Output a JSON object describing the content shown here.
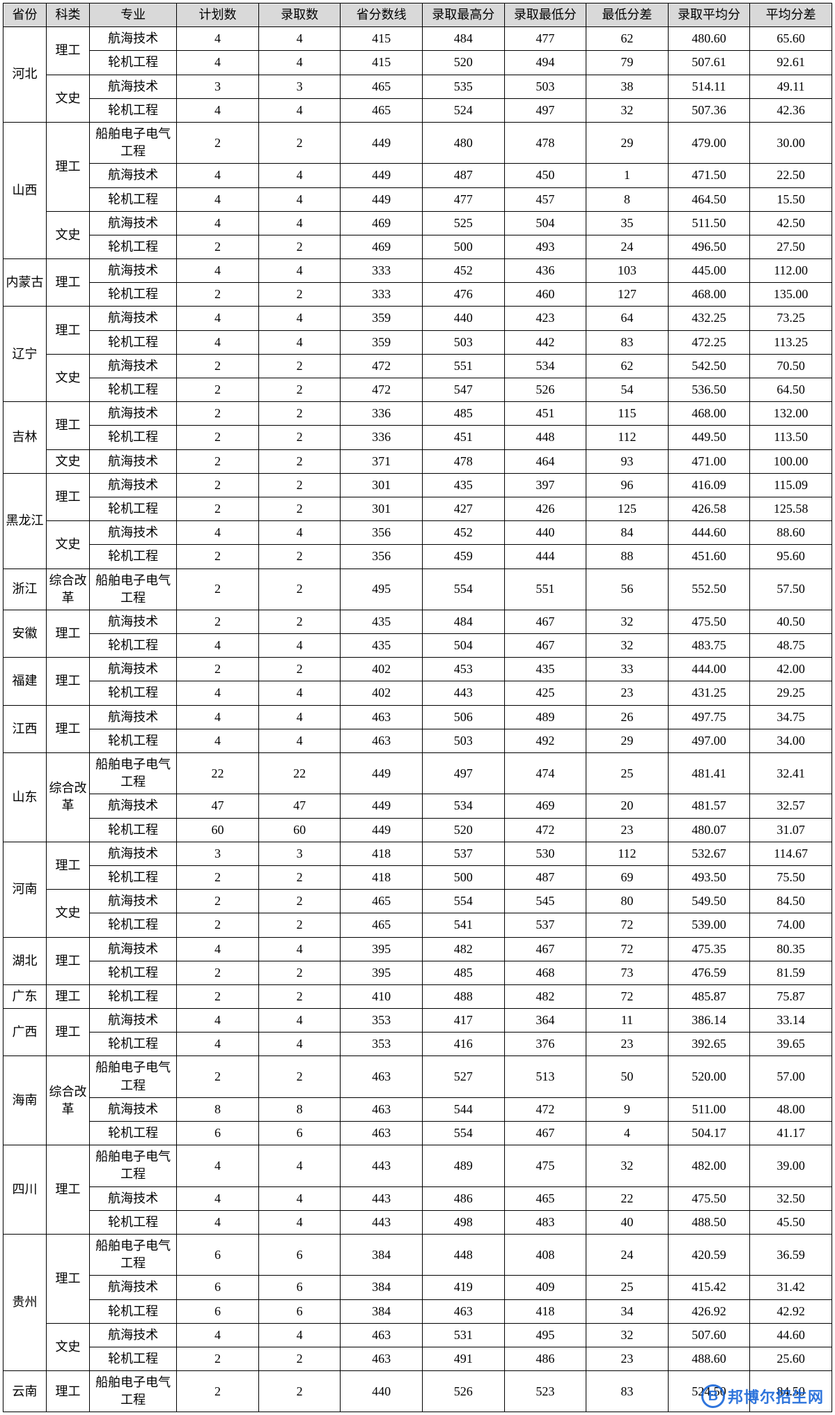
{
  "headers": [
    "省份",
    "科类",
    "专业",
    "计划数",
    "录取数",
    "省分数线",
    "录取最高分",
    "录取最低分",
    "最低分差",
    "录取平均分",
    "平均分差"
  ],
  "watermark": {
    "badge": "B",
    "text": "邦博尔招生网"
  },
  "groups": [
    {
      "province": "河北",
      "cats": [
        {
          "cat": "理工",
          "rows": [
            [
              "航海技术",
              "4",
              "4",
              "415",
              "484",
              "477",
              "62",
              "480.60",
              "65.60"
            ],
            [
              "轮机工程",
              "4",
              "4",
              "415",
              "520",
              "494",
              "79",
              "507.61",
              "92.61"
            ]
          ]
        },
        {
          "cat": "文史",
          "rows": [
            [
              "航海技术",
              "3",
              "3",
              "465",
              "535",
              "503",
              "38",
              "514.11",
              "49.11"
            ],
            [
              "轮机工程",
              "4",
              "4",
              "465",
              "524",
              "497",
              "32",
              "507.36",
              "42.36"
            ]
          ]
        }
      ]
    },
    {
      "province": "山西",
      "cats": [
        {
          "cat": "理工",
          "rows": [
            [
              "船舶电子电气工程",
              "2",
              "2",
              "449",
              "480",
              "478",
              "29",
              "479.00",
              "30.00"
            ],
            [
              "航海技术",
              "4",
              "4",
              "449",
              "487",
              "450",
              "1",
              "471.50",
              "22.50"
            ],
            [
              "轮机工程",
              "4",
              "4",
              "449",
              "477",
              "457",
              "8",
              "464.50",
              "15.50"
            ]
          ]
        },
        {
          "cat": "文史",
          "rows": [
            [
              "航海技术",
              "4",
              "4",
              "469",
              "525",
              "504",
              "35",
              "511.50",
              "42.50"
            ],
            [
              "轮机工程",
              "2",
              "2",
              "469",
              "500",
              "493",
              "24",
              "496.50",
              "27.50"
            ]
          ]
        }
      ]
    },
    {
      "province": "内蒙古",
      "cats": [
        {
          "cat": "理工",
          "rows": [
            [
              "航海技术",
              "4",
              "4",
              "333",
              "452",
              "436",
              "103",
              "445.00",
              "112.00"
            ],
            [
              "轮机工程",
              "2",
              "2",
              "333",
              "476",
              "460",
              "127",
              "468.00",
              "135.00"
            ]
          ]
        }
      ]
    },
    {
      "province": "辽宁",
      "cats": [
        {
          "cat": "理工",
          "rows": [
            [
              "航海技术",
              "4",
              "4",
              "359",
              "440",
              "423",
              "64",
              "432.25",
              "73.25"
            ],
            [
              "轮机工程",
              "4",
              "4",
              "359",
              "503",
              "442",
              "83",
              "472.25",
              "113.25"
            ]
          ]
        },
        {
          "cat": "文史",
          "rows": [
            [
              "航海技术",
              "2",
              "2",
              "472",
              "551",
              "534",
              "62",
              "542.50",
              "70.50"
            ],
            [
              "轮机工程",
              "2",
              "2",
              "472",
              "547",
              "526",
              "54",
              "536.50",
              "64.50"
            ]
          ]
        }
      ]
    },
    {
      "province": "吉林",
      "cats": [
        {
          "cat": "理工",
          "rows": [
            [
              "航海技术",
              "2",
              "2",
              "336",
              "485",
              "451",
              "115",
              "468.00",
              "132.00"
            ],
            [
              "轮机工程",
              "2",
              "2",
              "336",
              "451",
              "448",
              "112",
              "449.50",
              "113.50"
            ]
          ]
        },
        {
          "cat": "文史",
          "rows": [
            [
              "航海技术",
              "2",
              "2",
              "371",
              "478",
              "464",
              "93",
              "471.00",
              "100.00"
            ]
          ]
        }
      ]
    },
    {
      "province": "黑龙江",
      "cats": [
        {
          "cat": "理工",
          "rows": [
            [
              "航海技术",
              "2",
              "2",
              "301",
              "435",
              "397",
              "96",
              "416.09",
              "115.09"
            ],
            [
              "轮机工程",
              "2",
              "2",
              "301",
              "427",
              "426",
              "125",
              "426.58",
              "125.58"
            ]
          ]
        },
        {
          "cat": "文史",
          "rows": [
            [
              "航海技术",
              "4",
              "4",
              "356",
              "452",
              "440",
              "84",
              "444.60",
              "88.60"
            ],
            [
              "轮机工程",
              "2",
              "2",
              "356",
              "459",
              "444",
              "88",
              "451.60",
              "95.60"
            ]
          ]
        }
      ]
    },
    {
      "province": "浙江",
      "cats": [
        {
          "cat": "综合改革",
          "rows": [
            [
              "船舶电子电气工程",
              "2",
              "2",
              "495",
              "554",
              "551",
              "56",
              "552.50",
              "57.50"
            ]
          ]
        }
      ]
    },
    {
      "province": "安徽",
      "cats": [
        {
          "cat": "理工",
          "rows": [
            [
              "航海技术",
              "2",
              "2",
              "435",
              "484",
              "467",
              "32",
              "475.50",
              "40.50"
            ],
            [
              "轮机工程",
              "4",
              "4",
              "435",
              "504",
              "467",
              "32",
              "483.75",
              "48.75"
            ]
          ]
        }
      ]
    },
    {
      "province": "福建",
      "cats": [
        {
          "cat": "理工",
          "rows": [
            [
              "航海技术",
              "2",
              "2",
              "402",
              "453",
              "435",
              "33",
              "444.00",
              "42.00"
            ],
            [
              "轮机工程",
              "4",
              "4",
              "402",
              "443",
              "425",
              "23",
              "431.25",
              "29.25"
            ]
          ]
        }
      ]
    },
    {
      "province": "江西",
      "cats": [
        {
          "cat": "理工",
          "rows": [
            [
              "航海技术",
              "4",
              "4",
              "463",
              "506",
              "489",
              "26",
              "497.75",
              "34.75"
            ],
            [
              "轮机工程",
              "4",
              "4",
              "463",
              "503",
              "492",
              "29",
              "497.00",
              "34.00"
            ]
          ]
        }
      ]
    },
    {
      "province": "山东",
      "cats": [
        {
          "cat": "综合改革",
          "rows": [
            [
              "船舶电子电气工程",
              "22",
              "22",
              "449",
              "497",
              "474",
              "25",
              "481.41",
              "32.41"
            ],
            [
              "航海技术",
              "47",
              "47",
              "449",
              "534",
              "469",
              "20",
              "481.57",
              "32.57"
            ],
            [
              "轮机工程",
              "60",
              "60",
              "449",
              "520",
              "472",
              "23",
              "480.07",
              "31.07"
            ]
          ]
        }
      ]
    },
    {
      "province": "河南",
      "cats": [
        {
          "cat": "理工",
          "rows": [
            [
              "航海技术",
              "3",
              "3",
              "418",
              "537",
              "530",
              "112",
              "532.67",
              "114.67"
            ],
            [
              "轮机工程",
              "2",
              "2",
              "418",
              "500",
              "487",
              "69",
              "493.50",
              "75.50"
            ]
          ]
        },
        {
          "cat": "文史",
          "rows": [
            [
              "航海技术",
              "2",
              "2",
              "465",
              "554",
              "545",
              "80",
              "549.50",
              "84.50"
            ],
            [
              "轮机工程",
              "2",
              "2",
              "465",
              "541",
              "537",
              "72",
              "539.00",
              "74.00"
            ]
          ]
        }
      ]
    },
    {
      "province": "湖北",
      "cats": [
        {
          "cat": "理工",
          "rows": [
            [
              "航海技术",
              "4",
              "4",
              "395",
              "482",
              "467",
              "72",
              "475.35",
              "80.35"
            ],
            [
              "轮机工程",
              "2",
              "2",
              "395",
              "485",
              "468",
              "73",
              "476.59",
              "81.59"
            ]
          ]
        }
      ]
    },
    {
      "province": "广东",
      "cats": [
        {
          "cat": "理工",
          "rows": [
            [
              "轮机工程",
              "2",
              "2",
              "410",
              "488",
              "482",
              "72",
              "485.87",
              "75.87"
            ]
          ]
        }
      ]
    },
    {
      "province": "广西",
      "cats": [
        {
          "cat": "理工",
          "rows": [
            [
              "航海技术",
              "4",
              "4",
              "353",
              "417",
              "364",
              "11",
              "386.14",
              "33.14"
            ],
            [
              "轮机工程",
              "4",
              "4",
              "353",
              "416",
              "376",
              "23",
              "392.65",
              "39.65"
            ]
          ]
        }
      ]
    },
    {
      "province": "海南",
      "cats": [
        {
          "cat": "综合改革",
          "rows": [
            [
              "船舶电子电气工程",
              "2",
              "2",
              "463",
              "527",
              "513",
              "50",
              "520.00",
              "57.00"
            ],
            [
              "航海技术",
              "8",
              "8",
              "463",
              "544",
              "472",
              "9",
              "511.00",
              "48.00"
            ],
            [
              "轮机工程",
              "6",
              "6",
              "463",
              "554",
              "467",
              "4",
              "504.17",
              "41.17"
            ]
          ]
        }
      ]
    },
    {
      "province": "四川",
      "cats": [
        {
          "cat": "理工",
          "rows": [
            [
              "船舶电子电气工程",
              "4",
              "4",
              "443",
              "489",
              "475",
              "32",
              "482.00",
              "39.00"
            ],
            [
              "航海技术",
              "4",
              "4",
              "443",
              "486",
              "465",
              "22",
              "475.50",
              "32.50"
            ],
            [
              "轮机工程",
              "4",
              "4",
              "443",
              "498",
              "483",
              "40",
              "488.50",
              "45.50"
            ]
          ]
        }
      ]
    },
    {
      "province": "贵州",
      "cats": [
        {
          "cat": "理工",
          "rows": [
            [
              "船舶电子电气工程",
              "6",
              "6",
              "384",
              "448",
              "408",
              "24",
              "420.59",
              "36.59"
            ],
            [
              "航海技术",
              "6",
              "6",
              "384",
              "419",
              "409",
              "25",
              "415.42",
              "31.42"
            ],
            [
              "轮机工程",
              "6",
              "6",
              "384",
              "463",
              "418",
              "34",
              "426.92",
              "42.92"
            ]
          ]
        },
        {
          "cat": "文史",
          "rows": [
            [
              "航海技术",
              "4",
              "4",
              "463",
              "531",
              "495",
              "32",
              "507.60",
              "44.60"
            ],
            [
              "轮机工程",
              "2",
              "2",
              "463",
              "491",
              "486",
              "23",
              "488.60",
              "25.60"
            ]
          ]
        }
      ]
    },
    {
      "province": "云南",
      "cats": [
        {
          "cat": "理工",
          "rows": [
            [
              "船舶电子电气工程",
              "2",
              "2",
              "440",
              "526",
              "523",
              "83",
              "524.50",
              "84.50"
            ]
          ]
        }
      ]
    }
  ]
}
